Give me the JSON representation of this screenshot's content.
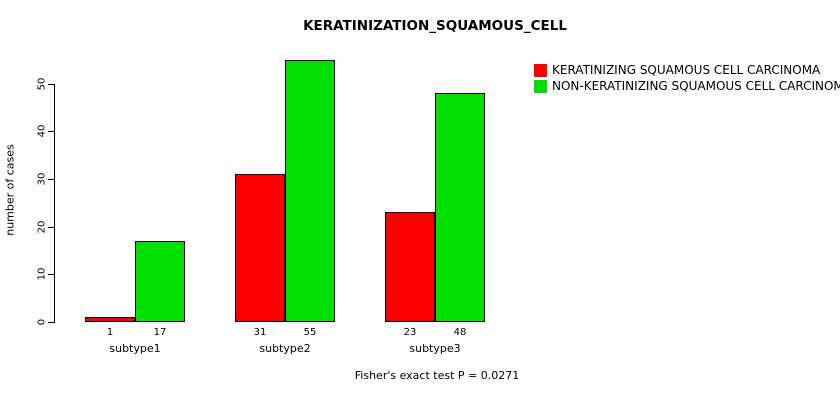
{
  "figure": {
    "title": "KERATINIZATION_SQUAMOUS_CELL",
    "ylabel": "number of cases",
    "annotation": "Fisher's exact test P = 0.0271"
  },
  "chart_data": {
    "type": "bar",
    "title": "KERATINIZATION_SQUAMOUS_CELL",
    "categories": [
      "subtype1",
      "subtype2",
      "subtype3"
    ],
    "series": [
      {
        "name": "KERATINIZING SQUAMOUS CELL CARCINOMA",
        "color": "#ff0000",
        "values": [
          1,
          31,
          23
        ]
      },
      {
        "name": "NON-KERATINIZING SQUAMOUS CELL CARCINOMA",
        "color": "#00e000",
        "values": [
          17,
          55,
          48
        ]
      }
    ],
    "bar_value_labels": [
      [
        1,
        31,
        23
      ],
      [
        17,
        55,
        48
      ]
    ],
    "xlabel": "",
    "ylabel": "number of cases",
    "ylim": [
      0,
      56
    ],
    "yticks": [
      0,
      10,
      20,
      30,
      40,
      50
    ],
    "grid": false,
    "legend_position": "top-right",
    "annotation": "Fisher's exact test P = 0.0271"
  }
}
